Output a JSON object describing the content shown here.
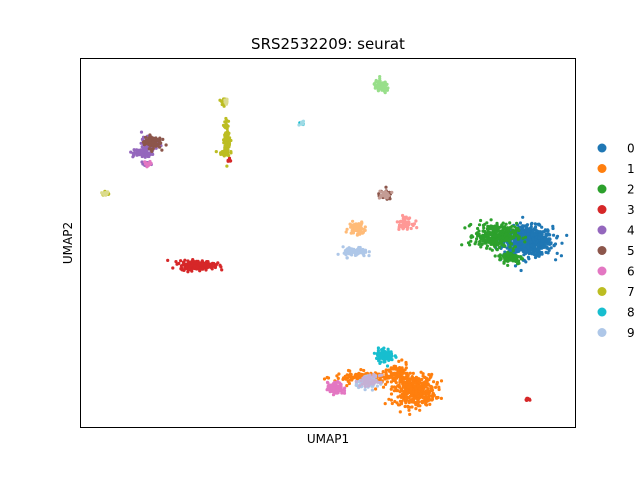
{
  "chart_data": {
    "type": "scatter",
    "title": "SRS2532209: seurat",
    "xlabel": "UMAP1",
    "ylabel": "UMAP2",
    "xlim": [
      0,
      100
    ],
    "ylim": [
      0,
      100
    ],
    "ticks": "none",
    "grid": false,
    "legend_position": "right",
    "series": [
      {
        "name": "0",
        "color": "#1f77b4",
        "blobs": [
          [
            90.5,
            50.5,
            4.5,
            3.6,
            700
          ]
        ]
      },
      {
        "name": "1",
        "color": "#ff7f0e",
        "blobs": [
          [
            67.5,
            10,
            3.8,
            3.8,
            420
          ],
          [
            58,
            13.5,
            6,
            1.4,
            160
          ],
          [
            64,
            15,
            2,
            2,
            60
          ]
        ]
      },
      {
        "name": "2",
        "color": "#2ca02c",
        "blobs": [
          [
            84,
            52,
            3.8,
            3,
            330
          ],
          [
            87,
            46,
            2.2,
            1.6,
            80
          ]
        ]
      },
      {
        "name": "3",
        "color": "#d62728",
        "blobs": [
          [
            23.5,
            44,
            3.2,
            1.1,
            240
          ],
          [
            90.5,
            7.5,
            0.6,
            0.4,
            8
          ],
          [
            30,
            72.5,
            0.4,
            0.6,
            6
          ]
        ]
      },
      {
        "name": "4",
        "color": "#9467bd",
        "blobs": [
          [
            12.5,
            74.5,
            1.8,
            1.2,
            70
          ],
          [
            14,
            77,
            1.6,
            1.6,
            70
          ],
          [
            13,
            71.5,
            0.8,
            0.7,
            20
          ]
        ]
      },
      {
        "name": "5",
        "color": "#8c564b",
        "blobs": [
          [
            14.5,
            77.5,
            1.5,
            1.6,
            110
          ],
          [
            61.5,
            63,
            1.2,
            1.1,
            30
          ]
        ]
      },
      {
        "name": "6",
        "color": "#e377c2",
        "blobs": [
          [
            51.5,
            10.5,
            1.4,
            1.4,
            120
          ],
          [
            13.5,
            71.5,
            0.8,
            0.7,
            20
          ]
        ]
      },
      {
        "name": "7",
        "color": "#bcbd22",
        "blobs": [
          [
            29.5,
            78.5,
            0.6,
            4.5,
            90
          ],
          [
            28.8,
            88.5,
            0.5,
            0.8,
            20
          ],
          [
            5,
            63.5,
            0.7,
            0.4,
            14
          ],
          [
            29,
            74.5,
            1,
            0.7,
            25
          ]
        ]
      },
      {
        "name": "8",
        "color": "#17becf",
        "blobs": [
          [
            61.5,
            19.5,
            1.6,
            1.7,
            100
          ],
          [
            44.8,
            82.5,
            0.5,
            0.4,
            8
          ]
        ]
      },
      {
        "name": "9",
        "color": "#aec7e8",
        "blobs": [
          [
            55.5,
            47.5,
            2.2,
            1.2,
            80
          ],
          [
            58.5,
            12,
            2.5,
            1.3,
            60
          ]
        ]
      },
      {
        "name": "",
        "color": "#98df8a",
        "blobs": [
          [
            60.8,
            92.5,
            1.5,
            1.5,
            80
          ]
        ]
      },
      {
        "name": "",
        "color": "#ffbb78",
        "blobs": [
          [
            55.8,
            54,
            1.4,
            1.6,
            70
          ]
        ]
      },
      {
        "name": "",
        "color": "#ff9896",
        "blobs": [
          [
            65.5,
            55.5,
            1.4,
            1.4,
            60
          ]
        ]
      },
      {
        "name": "",
        "color": "#c5b0d5",
        "blobs": [
          [
            58.5,
            12.5,
            1.8,
            1.4,
            50
          ]
        ]
      },
      {
        "name": "",
        "color": "#c49c94",
        "blobs": [
          [
            61.5,
            63,
            1.1,
            1,
            25
          ]
        ]
      },
      {
        "name": "",
        "color": "#dbdb8d",
        "blobs": [
          [
            5,
            63.5,
            0.6,
            0.4,
            12
          ],
          [
            29.3,
            88.5,
            0.5,
            0.6,
            12
          ]
        ]
      },
      {
        "name": "",
        "color": "#9edae5",
        "blobs": [
          [
            44.8,
            82.5,
            0.5,
            0.4,
            10
          ]
        ]
      }
    ]
  }
}
